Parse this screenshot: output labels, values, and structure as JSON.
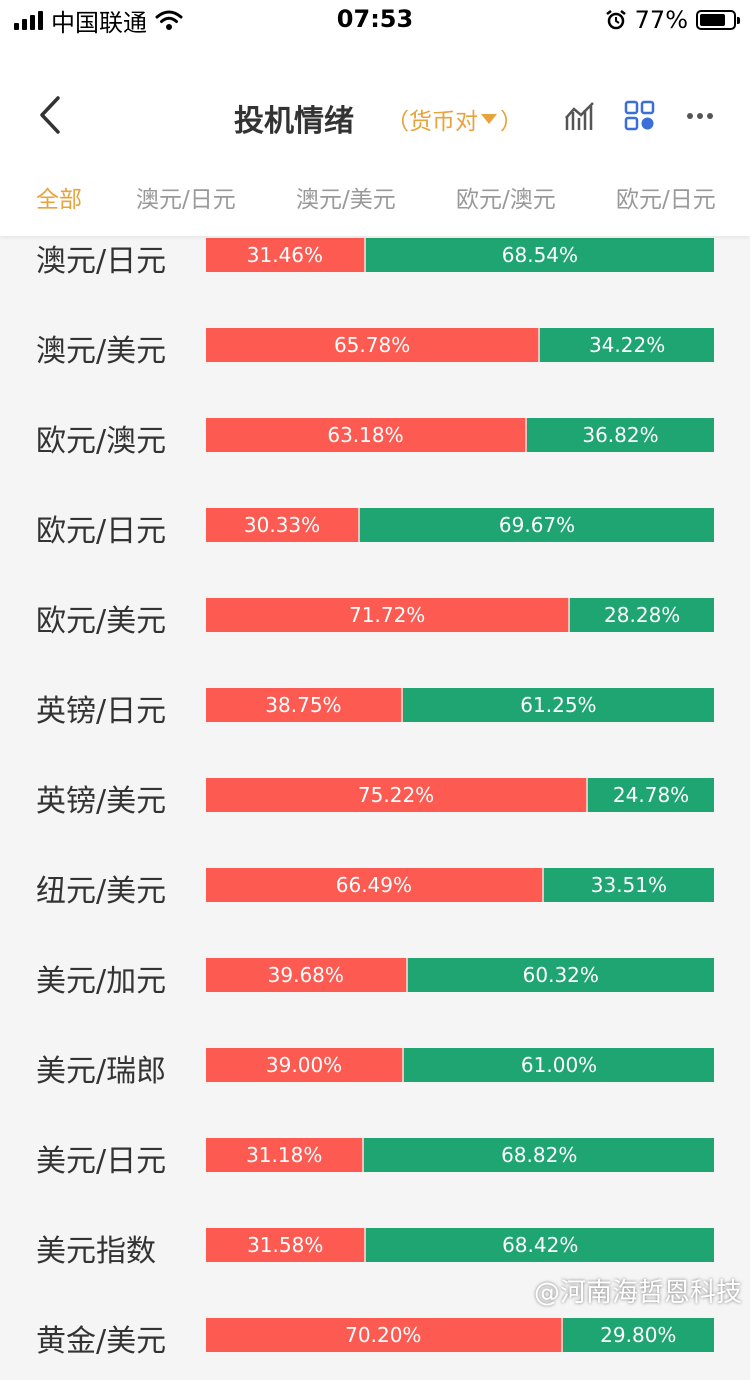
{
  "status_bar": {
    "carrier": "中国联通",
    "time": "07:53",
    "battery": "77%",
    "battery_level": 0.77
  },
  "nav": {
    "title": "投机情绪",
    "filter_label": "（货币对",
    "filter_close": "）"
  },
  "tabs": [
    "全部",
    "澳元/日元",
    "澳元/美元",
    "欧元/澳元",
    "欧元/日元"
  ],
  "rows": [
    {
      "label": "澳元/日元",
      "long": "31.46%",
      "short": "68.54%",
      "long_value": 31.46
    },
    {
      "label": "澳元/美元",
      "long": "65.78%",
      "short": "34.22%",
      "long_value": 65.78
    },
    {
      "label": "欧元/澳元",
      "long": "63.18%",
      "short": "36.82%",
      "long_value": 63.18
    },
    {
      "label": "欧元/日元",
      "long": "30.33%",
      "short": "69.67%",
      "long_value": 30.33
    },
    {
      "label": "欧元/美元",
      "long": "71.72%",
      "short": "28.28%",
      "long_value": 71.72
    },
    {
      "label": "英镑/日元",
      "long": "38.75%",
      "short": "61.25%",
      "long_value": 38.75
    },
    {
      "label": "英镑/美元",
      "long": "75.22%",
      "short": "24.78%",
      "long_value": 75.22
    },
    {
      "label": "纽元/美元",
      "long": "66.49%",
      "short": "33.51%",
      "long_value": 66.49
    },
    {
      "label": "美元/加元",
      "long": "39.68%",
      "short": "60.32%",
      "long_value": 39.68
    },
    {
      "label": "美元/瑞郎",
      "long": "39.00%",
      "short": "61.00%",
      "long_value": 39.0
    },
    {
      "label": "美元/日元",
      "long": "31.18%",
      "short": "68.82%",
      "long_value": 31.18
    },
    {
      "label": "美元指数",
      "long": "31.58%",
      "short": "68.42%",
      "long_value": 31.58
    },
    {
      "label": "黄金/美元",
      "long": "70.20%",
      "short": "29.80%",
      "long_value": 70.2
    }
  ],
  "colors": {
    "accent": "#e8a33d",
    "long": "#fd5b52",
    "short": "#1ea571",
    "icon_blue": "#3b6fd8"
  },
  "watermark": "@河南海哲恩科技"
}
